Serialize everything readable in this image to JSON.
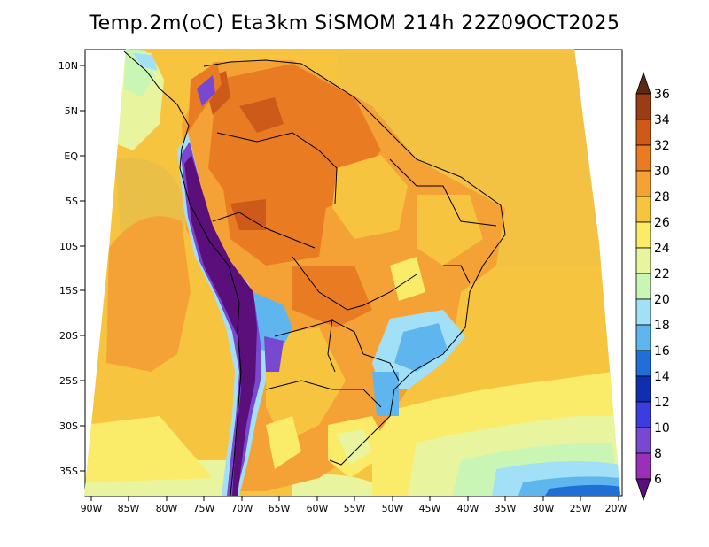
{
  "title": "Temp.2m(oC) Eta3km SiSMOM 214h 22Z09OCT2025",
  "lat_ticks": [
    "10N",
    "5N",
    "EQ",
    "5S",
    "10S",
    "15S",
    "20S",
    "25S",
    "30S",
    "35S"
  ],
  "lon_ticks": [
    "90W",
    "85W",
    "80W",
    "75W",
    "70W",
    "65W",
    "60W",
    "55W",
    "50W",
    "45W",
    "40W",
    "35W",
    "30W",
    "25W",
    "20W"
  ],
  "colorbar": {
    "labels": [
      "36",
      "34",
      "32",
      "30",
      "28",
      "26",
      "24",
      "22",
      "20",
      "18",
      "16",
      "14",
      "12",
      "10",
      "8",
      "6"
    ],
    "colors": [
      "#5a2a12",
      "#9a3d14",
      "#cd5a18",
      "#e97c22",
      "#f4a236",
      "#f6c43e",
      "#faeb68",
      "#e8f59e",
      "#c9f6b5",
      "#a2e0f7",
      "#5fb6ee",
      "#1f6fd6",
      "#0f2fb0",
      "#3c3ce0",
      "#7848d0",
      "#9a30b8",
      "#5a0f7a"
    ]
  }
}
